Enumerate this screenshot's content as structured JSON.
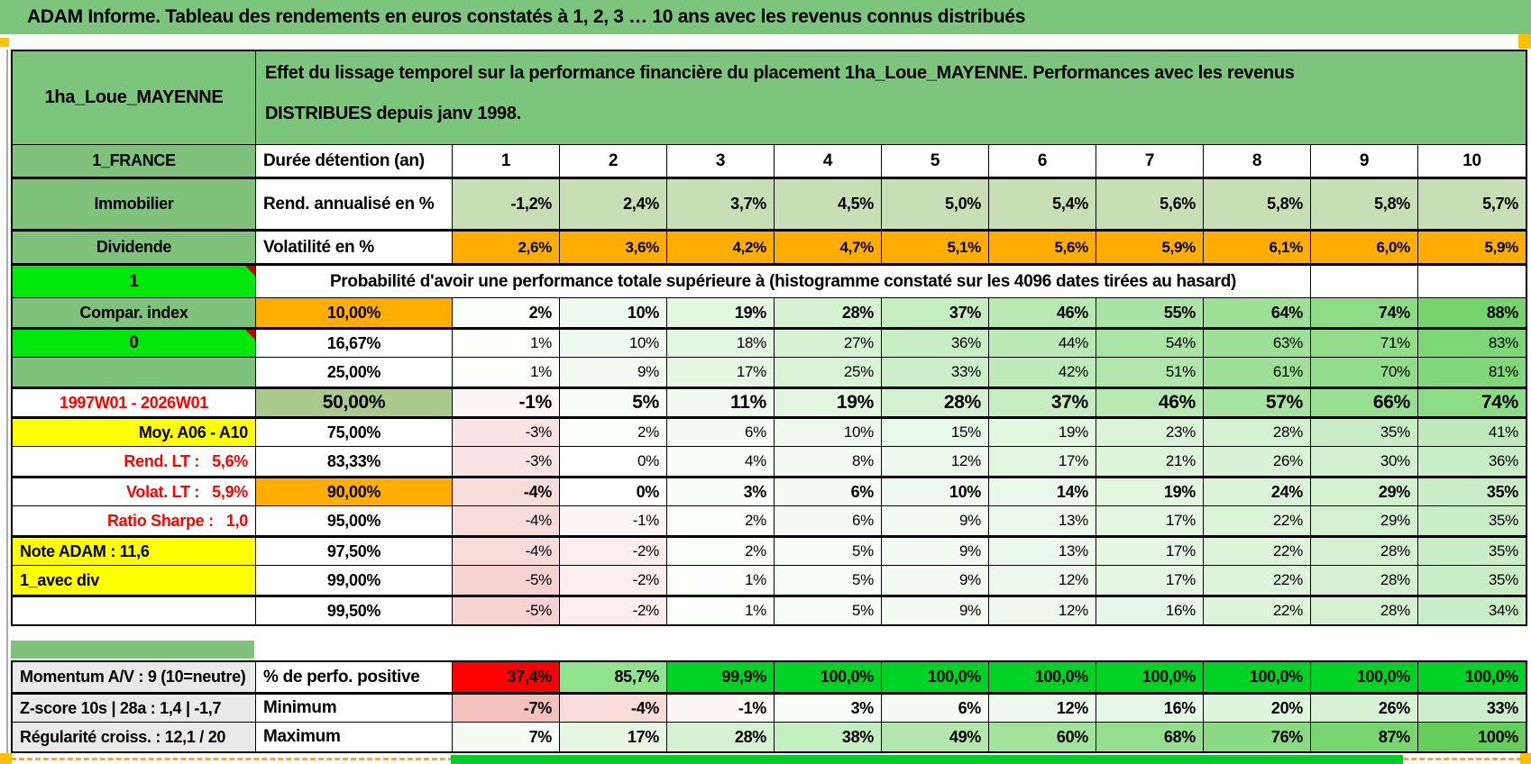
{
  "banner": "ADAM Informe. Tableau des rendements en euros constatés à 1, 2, 3 … 10 ans avec les revenus connus distribués",
  "header": {
    "placement": "1ha_Loue_MAYENNE",
    "description": "Effet du lissage temporel sur la performance financière du placement 1ha_Loue_MAYENNE. Performances avec les revenus DISTRIBUES depuis janv 1998.",
    "region": "1_FRANCE",
    "duration_label": "Durée détention (an)",
    "columns": [
      "1",
      "2",
      "3",
      "4",
      "5",
      "6",
      "7",
      "8",
      "9",
      "10"
    ]
  },
  "annualized": {
    "left": "Immobilier",
    "label": "Rend. annualisé en %",
    "values": [
      "-1,2%",
      "2,4%",
      "3,7%",
      "4,5%",
      "5,0%",
      "5,4%",
      "5,6%",
      "5,8%",
      "5,8%",
      "5,7%"
    ]
  },
  "volatility": {
    "left": "Dividende",
    "label": "Volatilité en %",
    "values": [
      "2,6%",
      "3,6%",
      "4,2%",
      "4,7%",
      "5,1%",
      "5,6%",
      "5,9%",
      "6,1%",
      "6,0%",
      "5,9%"
    ]
  },
  "probability": {
    "corner": "1",
    "title": "Probabilité d'avoir une performance totale supérieure à (histogramme constaté sur les 4096 dates tirées au hasard)",
    "rows": [
      {
        "left": "Compar. index",
        "left_style": "green",
        "threshold": "10,00%",
        "threshold_style": "orange",
        "emph": "bold",
        "values": [
          2,
          10,
          19,
          28,
          37,
          46,
          55,
          64,
          74,
          88
        ]
      },
      {
        "left": "0",
        "left_style": "bright",
        "marker": true,
        "threshold": "16,67%",
        "values": [
          1,
          10,
          18,
          27,
          36,
          44,
          54,
          63,
          71,
          83
        ],
        "thick_top": true
      },
      {
        "left": "",
        "left_style": "green",
        "threshold": "25,00%",
        "values": [
          1,
          9,
          17,
          25,
          33,
          42,
          51,
          61,
          70,
          81
        ]
      },
      {
        "left": "1997W01 - 2026W01",
        "left_style": "redtext",
        "threshold": "50,00%",
        "threshold_style": "sage",
        "emph": "big",
        "values": [
          -1,
          5,
          11,
          19,
          28,
          37,
          46,
          57,
          66,
          74
        ],
        "thick_top": true
      },
      {
        "left": "Moy. A06 - A10",
        "left_style": "yellow-right",
        "threshold": "75,00%",
        "values": [
          -3,
          2,
          6,
          10,
          15,
          19,
          23,
          28,
          35,
          41
        ],
        "thick_top": true
      },
      {
        "left": "Rend. LT :   5,6%",
        "left_style": "redtext-right",
        "threshold": "83,33%",
        "values": [
          -3,
          0,
          4,
          8,
          12,
          17,
          21,
          26,
          30,
          36
        ]
      },
      {
        "left": "Volat. LT :   5,9%",
        "left_style": "redtext-right",
        "threshold": "90,00%",
        "threshold_style": "orange",
        "emph": "bold",
        "values": [
          -4,
          0,
          3,
          6,
          10,
          14,
          19,
          24,
          29,
          35
        ],
        "thick_top": true
      },
      {
        "left": "Ratio Sharpe :   1,0",
        "left_style": "redtext-right",
        "threshold": "95,00%",
        "values": [
          -4,
          -1,
          2,
          6,
          9,
          13,
          17,
          22,
          29,
          35
        ]
      },
      {
        "left": "Note ADAM : 11,6",
        "left_style": "yellow-left",
        "threshold": "97,50%",
        "values": [
          -4,
          -2,
          2,
          5,
          9,
          13,
          17,
          22,
          28,
          35
        ],
        "thick_top": true
      },
      {
        "left": "1_avec div",
        "left_style": "yellow-left",
        "threshold": "99,00%",
        "values": [
          -5,
          -2,
          1,
          5,
          9,
          12,
          17,
          22,
          28,
          35
        ]
      },
      {
        "left": "",
        "left_style": "white",
        "threshold": "99,50%",
        "values": [
          -5,
          -2,
          1,
          5,
          9,
          12,
          16,
          22,
          28,
          34
        ],
        "thick_top": true
      }
    ]
  },
  "footer": {
    "rows": [
      {
        "left": "Momentum A/V : 9 (10=neutre)",
        "label": "% de perfo. positive",
        "values": [
          "37,4%",
          "85,7%",
          "99,9%",
          "100,0%",
          "100,0%",
          "100,0%",
          "100,0%",
          "100,0%",
          "100,0%",
          "100,0%"
        ],
        "cell_colors": [
          "#FF0000",
          "#90E48E",
          "#00D326",
          "#00D326",
          "#00D326",
          "#00D326",
          "#00D326",
          "#00D326",
          "#00D326",
          "#00D326"
        ]
      },
      {
        "left": "Z-score 10s | 28a : 1,4 | -1,7",
        "label": "Minimum",
        "values": [
          -7,
          -4,
          -1,
          3,
          6,
          12,
          16,
          20,
          26,
          33
        ],
        "thick_top": true
      },
      {
        "left": "Régularité croiss. : 12,1 / 20",
        "label": "Maximum",
        "values": [
          7,
          17,
          28,
          38,
          49,
          60,
          68,
          76,
          87,
          100
        ]
      }
    ]
  },
  "colors": {
    "banner_green": "#7CC57C",
    "label_green": "#7EC27B",
    "annual_green": "#C8DFB6",
    "bright_green": "#00E80B",
    "orange": "#FFAE00",
    "corner_orange": "#FFC000",
    "yellow": "#FFFF00",
    "sage": "#A9C98E",
    "gray": "#E9E9E9",
    "red": "#FF0000",
    "scale_pos": "#5CCC52",
    "scale_neg": "#F0B8B4",
    "strip_green": "#00CD26"
  }
}
